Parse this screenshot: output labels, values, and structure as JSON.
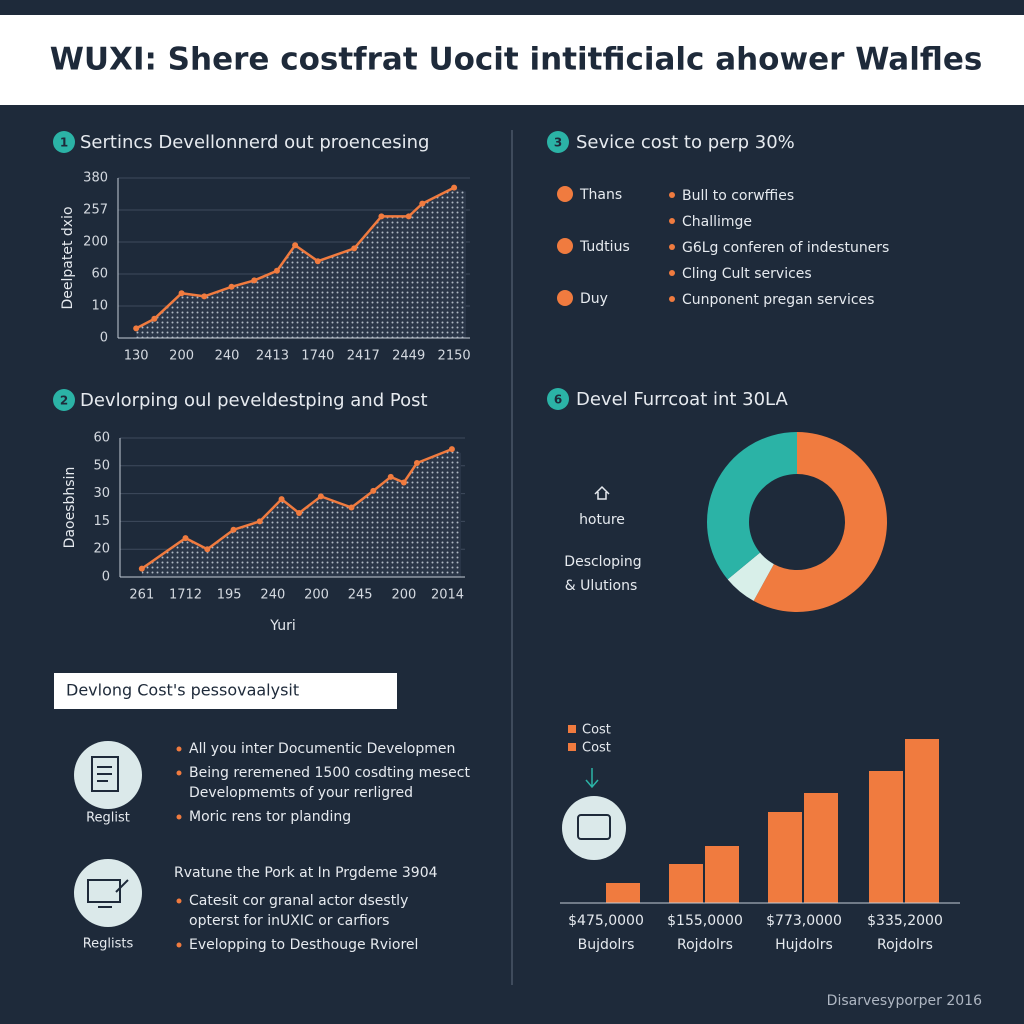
{
  "header": {
    "title": "WUXI: Shere costfrat Uocit intitficialc ahower Walfles"
  },
  "chart_data": [
    {
      "type": "line",
      "badge": "1",
      "title": "Sertincs Devellonnerd out proencesing",
      "ylabel": "Deelpatet dxio",
      "x": [
        0,
        0.4,
        1,
        1.5,
        2.1,
        2.6,
        3.1,
        3.5,
        4,
        4.8,
        5.4,
        6,
        6.3,
        7
      ],
      "values": [
        0.3,
        0.6,
        1.4,
        1.3,
        1.6,
        1.8,
        2.1,
        2.9,
        2.4,
        2.8,
        3.8,
        3.8,
        4.2,
        4.7
      ],
      "xlim": [
        -0.4,
        7.35
      ],
      "ylim": [
        0,
        5
      ],
      "xticks": [
        {
          "value": 0,
          "label": "130"
        },
        {
          "value": 1,
          "label": "200"
        },
        {
          "value": 2,
          "label": "240"
        },
        {
          "value": 3,
          "label": "2413"
        },
        {
          "value": 4,
          "label": "1740"
        },
        {
          "value": 5,
          "label": "2417"
        },
        {
          "value": 6,
          "label": "2449"
        },
        {
          "value": 7,
          "label": "2150"
        }
      ],
      "yticks": [
        0,
        {
          "value": 1,
          "label": "10"
        },
        {
          "value": 2,
          "label": "60"
        },
        {
          "value": 3,
          "label": "200"
        },
        {
          "value": 4,
          "label": "257"
        },
        {
          "value": 5,
          "label": "380"
        }
      ],
      "color": "#f07b3f",
      "grid": true
    },
    {
      "type": "line",
      "badge": "2",
      "title": "Devlorping oul peveldestping and Post",
      "ylabel": "Daoesbhsin",
      "xlabel": "Yuri",
      "x": [
        0,
        1,
        1.5,
        2.1,
        2.7,
        3.2,
        3.6,
        4.1,
        4.8,
        5.3,
        5.7,
        6,
        6.3,
        7.1
      ],
      "values": [
        0.3,
        1.4,
        1,
        1.7,
        2,
        2.8,
        2.3,
        2.9,
        2.5,
        3.1,
        3.6,
        3.4,
        4.1,
        4.6
      ],
      "xlim": [
        -0.5,
        7.4
      ],
      "ylim": [
        0,
        5
      ],
      "xticks": [
        {
          "value": 0,
          "label": "261"
        },
        {
          "value": 1,
          "label": "1712"
        },
        {
          "value": 2,
          "label": "195"
        },
        {
          "value": 3,
          "label": "240"
        },
        {
          "value": 4,
          "label": "200"
        },
        {
          "value": 5,
          "label": "245"
        },
        {
          "value": 6,
          "label": "200"
        },
        {
          "value": 7,
          "label": "2014"
        }
      ],
      "yticks": [
        0,
        {
          "value": 1,
          "label": "20"
        },
        {
          "value": 2,
          "label": "15"
        },
        {
          "value": 3,
          "label": "30"
        },
        {
          "value": 4,
          "label": "50"
        },
        {
          "value": 5,
          "label": "60"
        }
      ],
      "color": "#f07b3f",
      "grid": true
    },
    {
      "type": "pie",
      "badge": "6",
      "title": "Devel Furrcoat int 30LA",
      "labels": [
        "hoture",
        "Descloping",
        "& Ulutions"
      ],
      "values": [
        58,
        6,
        36
      ],
      "colors": [
        "#f07b3f",
        "#d8efe9",
        "#2bb3a6"
      ]
    },
    {
      "type": "bar",
      "categories": [
        "$475,0000",
        "$155,0000",
        "$773,0000",
        "$335,2000"
      ],
      "sublabels": [
        "Bujdolrs",
        "Rojdolrs",
        "Hujdolrs",
        "Rojdolrs"
      ],
      "ylim": [
        0,
        170
      ],
      "series": [
        {
          "name": "Cost",
          "color": "#f07b3f",
          "values": [
            null,
            39,
            91,
            132
          ]
        },
        {
          "name": "Cost",
          "color": "#f07b3f",
          "values": [
            20,
            57,
            110,
            164
          ]
        }
      ]
    }
  ],
  "services": {
    "badge": "3",
    "title": "Sevice cost to perp 30%",
    "items": [
      "Thans",
      "Tudtius",
      "Duy"
    ],
    "bullets": [
      "Bull to corwffies",
      "Challimge",
      "G6Lg conferen of indestuners",
      "Cling Cult services",
      "Cunponent pregan services"
    ]
  },
  "analysis": {
    "title": "Devlong Cost's pessovaalysit",
    "groups": [
      {
        "label": "Reglist",
        "bullets": [
          [
            "All you inter Documentic Developmen"
          ],
          [
            "Being reremened 1500 cosdting mesect",
            "Developmemts of your rerligred"
          ],
          [
            "Moric rens tor planding"
          ]
        ]
      },
      {
        "label": "Reglists",
        "heading": "Rvatune the Pork at In Prgdeme 3904",
        "bullets": [
          [
            "Catesit cor granal actor dsestly",
            "opterst for inUXIC or carfiors"
          ],
          [
            "Evelopping to Desthouge Rviorel"
          ]
        ]
      }
    ]
  },
  "footer": "Disarvesyporper 2016"
}
